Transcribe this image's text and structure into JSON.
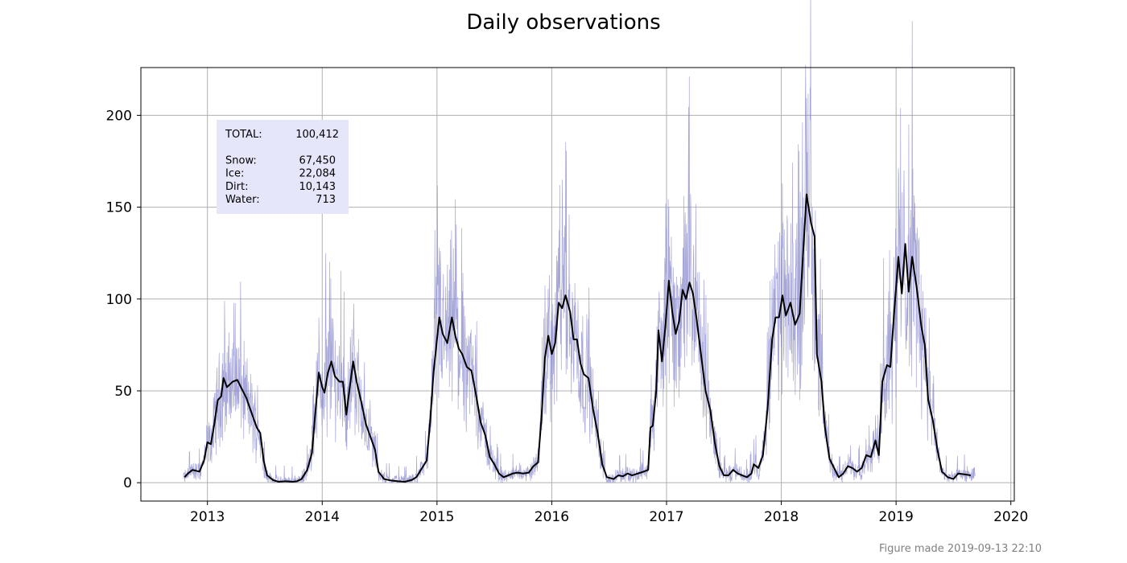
{
  "chart_data": {
    "type": "line",
    "title": "Daily observations",
    "xlabel": "",
    "ylabel": "",
    "xlim": [
      2012.42,
      2020.03
    ],
    "ylim": [
      -10,
      226
    ],
    "xticks": [
      2013,
      2014,
      2015,
      2016,
      2017,
      2018,
      2019,
      2020
    ],
    "yticks": [
      0,
      50,
      100,
      150,
      200
    ],
    "grid": true,
    "colors": {
      "daily": "#8888cc",
      "smoothed": "#000000",
      "legend_bg": "#e6e6fa",
      "grid": "#b0b0b0"
    },
    "series": [
      {
        "style": "thin-daily",
        "x_range": [
          2012.79,
          2019.69
        ],
        "max_values_note": "",
        "peaks": [
          {
            "x": 2013.15,
            "y": 99
          },
          {
            "x": 2014.03,
            "y": 125
          },
          {
            "x": 2014.19,
            "y": 104
          },
          {
            "x": 2015.02,
            "y": 128
          },
          {
            "x": 2015.11,
            "y": 116
          },
          {
            "x": 2016.09,
            "y": 165
          },
          {
            "x": 2017.02,
            "y": 150
          },
          {
            "x": 2017.16,
            "y": 138
          },
          {
            "x": 2018.01,
            "y": 163
          },
          {
            "x": 2018.21,
            "y": 205
          },
          {
            "x": 2018.25,
            "y": 215
          },
          {
            "x": 2019.04,
            "y": 204
          },
          {
            "x": 2019.11,
            "y": 195
          }
        ]
      },
      {
        "style": "smoothed",
        "points": [
          [
            2012.8,
            3
          ],
          [
            2012.83,
            5
          ],
          [
            2012.87,
            7
          ],
          [
            2012.93,
            6
          ],
          [
            2012.97,
            12
          ],
          [
            2013.0,
            22
          ],
          [
            2013.03,
            21
          ],
          [
            2013.06,
            32
          ],
          [
            2013.09,
            45
          ],
          [
            2013.12,
            47
          ],
          [
            2013.14,
            57
          ],
          [
            2013.17,
            52
          ],
          [
            2013.22,
            55
          ],
          [
            2013.26,
            56
          ],
          [
            2013.3,
            51
          ],
          [
            2013.34,
            46
          ],
          [
            2013.39,
            37
          ],
          [
            2013.43,
            30
          ],
          [
            2013.46,
            27
          ],
          [
            2013.49,
            12
          ],
          [
            2013.52,
            4
          ],
          [
            2013.57,
            1.5
          ],
          [
            2013.62,
            0.5
          ],
          [
            2013.68,
            0.8
          ],
          [
            2013.74,
            0.5
          ],
          [
            2013.78,
            0.8
          ],
          [
            2013.82,
            2
          ],
          [
            2013.87,
            7
          ],
          [
            2013.91,
            16
          ],
          [
            2013.94,
            38
          ],
          [
            2013.97,
            60
          ],
          [
            2014.0,
            52
          ],
          [
            2014.02,
            49
          ],
          [
            2014.05,
            60
          ],
          [
            2014.08,
            66
          ],
          [
            2014.11,
            58
          ],
          [
            2014.15,
            55
          ],
          [
            2014.18,
            55
          ],
          [
            2014.21,
            37
          ],
          [
            2014.24,
            52
          ],
          [
            2014.27,
            66
          ],
          [
            2014.3,
            55
          ],
          [
            2014.34,
            44
          ],
          [
            2014.38,
            32
          ],
          [
            2014.42,
            25
          ],
          [
            2014.46,
            18
          ],
          [
            2014.49,
            6
          ],
          [
            2014.54,
            2
          ],
          [
            2014.6,
            1.2
          ],
          [
            2014.66,
            0.8
          ],
          [
            2014.72,
            0.5
          ],
          [
            2014.78,
            1.5
          ],
          [
            2014.82,
            3
          ],
          [
            2014.87,
            8
          ],
          [
            2014.91,
            12
          ],
          [
            2014.94,
            33
          ],
          [
            2014.97,
            60
          ],
          [
            2015.0,
            78
          ],
          [
            2015.02,
            90
          ],
          [
            2015.05,
            81
          ],
          [
            2015.09,
            76
          ],
          [
            2015.13,
            90
          ],
          [
            2015.16,
            80
          ],
          [
            2015.19,
            73
          ],
          [
            2015.22,
            70
          ],
          [
            2015.26,
            63
          ],
          [
            2015.3,
            61
          ],
          [
            2015.34,
            48
          ],
          [
            2015.38,
            33
          ],
          [
            2015.42,
            26
          ],
          [
            2015.46,
            14
          ],
          [
            2015.5,
            10
          ],
          [
            2015.54,
            5
          ],
          [
            2015.58,
            3
          ],
          [
            2015.62,
            4
          ],
          [
            2015.66,
            5
          ],
          [
            2015.7,
            5.5
          ],
          [
            2015.75,
            5
          ],
          [
            2015.8,
            5.5
          ],
          [
            2015.84,
            9
          ],
          [
            2015.88,
            11
          ],
          [
            2015.91,
            35
          ],
          [
            2015.94,
            68
          ],
          [
            2015.97,
            80
          ],
          [
            2016.0,
            70
          ],
          [
            2016.03,
            76
          ],
          [
            2016.06,
            98
          ],
          [
            2016.09,
            95
          ],
          [
            2016.12,
            102
          ],
          [
            2016.16,
            93
          ],
          [
            2016.19,
            78
          ],
          [
            2016.22,
            78
          ],
          [
            2016.25,
            65
          ],
          [
            2016.28,
            59
          ],
          [
            2016.32,
            57
          ],
          [
            2016.36,
            40
          ],
          [
            2016.4,
            27
          ],
          [
            2016.44,
            10
          ],
          [
            2016.48,
            3
          ],
          [
            2016.54,
            2
          ],
          [
            2016.58,
            4
          ],
          [
            2016.62,
            3.5
          ],
          [
            2016.66,
            5
          ],
          [
            2016.7,
            4
          ],
          [
            2016.75,
            5
          ],
          [
            2016.8,
            6
          ],
          [
            2016.84,
            7
          ],
          [
            2016.86,
            30
          ],
          [
            2016.88,
            31
          ],
          [
            2016.91,
            50
          ],
          [
            2016.93,
            83
          ],
          [
            2016.96,
            66
          ],
          [
            2016.99,
            85
          ],
          [
            2017.02,
            110
          ],
          [
            2017.05,
            93
          ],
          [
            2017.08,
            81
          ],
          [
            2017.11,
            88
          ],
          [
            2017.14,
            105
          ],
          [
            2017.17,
            100
          ],
          [
            2017.2,
            109
          ],
          [
            2017.23,
            103
          ],
          [
            2017.26,
            90
          ],
          [
            2017.3,
            70
          ],
          [
            2017.34,
            50
          ],
          [
            2017.38,
            40
          ],
          [
            2017.42,
            22
          ],
          [
            2017.46,
            9
          ],
          [
            2017.5,
            4
          ],
          [
            2017.54,
            4
          ],
          [
            2017.58,
            7
          ],
          [
            2017.62,
            5
          ],
          [
            2017.66,
            4
          ],
          [
            2017.7,
            3
          ],
          [
            2017.74,
            5
          ],
          [
            2017.76,
            10
          ],
          [
            2017.8,
            8
          ],
          [
            2017.84,
            15
          ],
          [
            2017.88,
            40
          ],
          [
            2017.92,
            78
          ],
          [
            2017.95,
            90
          ],
          [
            2017.98,
            90
          ],
          [
            2018.01,
            102
          ],
          [
            2018.04,
            91
          ],
          [
            2018.08,
            98
          ],
          [
            2018.12,
            86
          ],
          [
            2018.16,
            92
          ],
          [
            2018.19,
            125
          ],
          [
            2018.22,
            157
          ],
          [
            2018.26,
            141
          ],
          [
            2018.29,
            134
          ],
          [
            2018.31,
            70
          ],
          [
            2018.35,
            55
          ],
          [
            2018.38,
            30
          ],
          [
            2018.42,
            13
          ],
          [
            2018.46,
            8
          ],
          [
            2018.5,
            3
          ],
          [
            2018.54,
            5
          ],
          [
            2018.58,
            9
          ],
          [
            2018.62,
            8
          ],
          [
            2018.66,
            6
          ],
          [
            2018.7,
            8
          ],
          [
            2018.74,
            15
          ],
          [
            2018.78,
            14
          ],
          [
            2018.82,
            23
          ],
          [
            2018.85,
            15
          ],
          [
            2018.88,
            55
          ],
          [
            2018.92,
            64
          ],
          [
            2018.95,
            63
          ],
          [
            2018.98,
            90
          ],
          [
            2019.02,
            123
          ],
          [
            2019.05,
            103
          ],
          [
            2019.08,
            130
          ],
          [
            2019.11,
            104
          ],
          [
            2019.14,
            123
          ],
          [
            2019.18,
            106
          ],
          [
            2019.22,
            85
          ],
          [
            2019.25,
            75
          ],
          [
            2019.28,
            45
          ],
          [
            2019.32,
            34
          ],
          [
            2019.36,
            18
          ],
          [
            2019.4,
            6
          ],
          [
            2019.45,
            3
          ],
          [
            2019.5,
            2
          ],
          [
            2019.54,
            5
          ],
          [
            2019.6,
            4.5
          ],
          [
            2019.65,
            4
          ]
        ]
      }
    ],
    "legend": {
      "placement": "top-left",
      "rows": [
        {
          "label": "TOTAL:",
          "value": "100,412"
        },
        {
          "label": "",
          "value": ""
        },
        {
          "label": "Snow:",
          "value": "67,450"
        },
        {
          "label": "Ice:",
          "value": "22,084"
        },
        {
          "label": "Dirt:",
          "value": "10,143"
        },
        {
          "label": "Water:",
          "value": "713"
        }
      ]
    },
    "footer": "Figure made 2019-09-13 22:10"
  }
}
